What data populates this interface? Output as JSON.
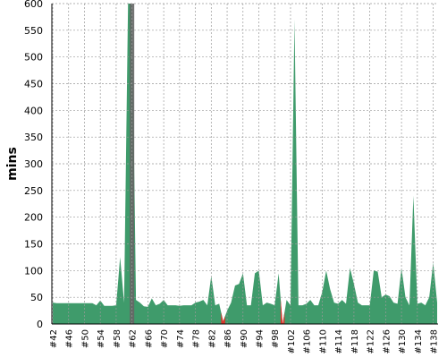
{
  "chart_data": {
    "type": "area",
    "y_label": "mins",
    "categories": [
      "#42",
      null,
      null,
      null,
      "#46",
      null,
      null,
      null,
      "#50",
      null,
      null,
      null,
      "#54",
      null,
      null,
      null,
      "#58",
      null,
      null,
      null,
      "#62",
      null,
      null,
      null,
      "#66",
      null,
      null,
      null,
      "#70",
      null,
      null,
      null,
      "#74",
      null,
      null,
      null,
      "#78",
      null,
      null,
      null,
      "#82",
      null,
      null,
      null,
      "#86",
      null,
      null,
      null,
      "#90",
      null,
      null,
      null,
      "#94",
      null,
      null,
      null,
      "#98",
      null,
      null,
      null,
      "#102",
      null,
      null,
      null,
      "#106",
      null,
      null,
      null,
      "#110",
      null,
      null,
      null,
      "#114",
      null,
      null,
      null,
      "#118",
      null,
      null,
      null,
      "#122",
      null,
      null,
      null,
      "#126",
      null,
      null,
      null,
      "#130",
      null,
      null,
      null,
      "#134",
      null,
      null,
      null,
      "#138",
      null
    ],
    "values": [
      40,
      39,
      39,
      39,
      39,
      39,
      39,
      39,
      39,
      39,
      39,
      35,
      44,
      34,
      34,
      34,
      35,
      125,
      40,
      600,
      600,
      45,
      40,
      33,
      32,
      48,
      35,
      38,
      45,
      35,
      35,
      35,
      34,
      35,
      35,
      35,
      40,
      42,
      45,
      35,
      90,
      35,
      38,
      5,
      25,
      40,
      72,
      75,
      95,
      35,
      35,
      95,
      100,
      35,
      40,
      38,
      35,
      95,
      0,
      45,
      35,
      570,
      35,
      35,
      38,
      45,
      35,
      35,
      60,
      100,
      65,
      40,
      38,
      45,
      38,
      105,
      75,
      40,
      35,
      35,
      35,
      100,
      98,
      50,
      55,
      52,
      40,
      38,
      105,
      50,
      35,
      240,
      38,
      40,
      35,
      50,
      115,
      40
    ],
    "color": "#3f9b6b",
    "failed_color": "#d9342b",
    "failed_indices": [
      43,
      58
    ],
    "selected_index": 20,
    "selected_color": "#666666",
    "ylim": [
      0,
      600
    ],
    "yticks": [
      0,
      50,
      100,
      150,
      200,
      250,
      300,
      350,
      400,
      450,
      500,
      550,
      600
    ],
    "grid": true
  }
}
